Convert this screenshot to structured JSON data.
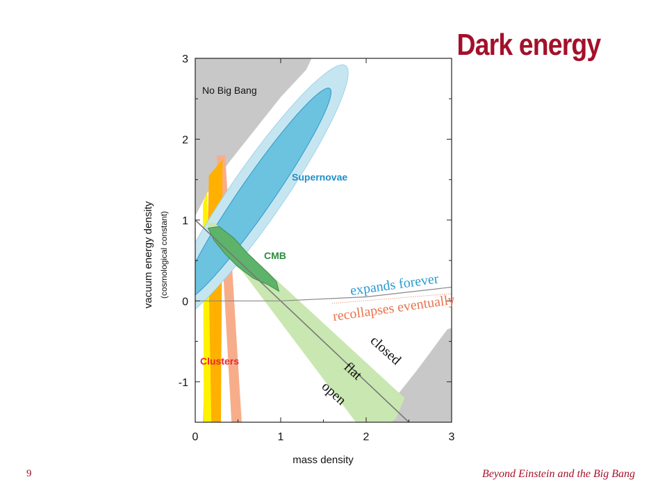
{
  "slide": {
    "title": "Dark energy",
    "page_number": "9",
    "footer": "Beyond Einstein and the Big Bang"
  },
  "chart_data": {
    "type": "contour",
    "xlabel": "mass density",
    "ylabel": "vacuum energy density",
    "ylabel_sub": "(cosmological constant)",
    "xlim": [
      0,
      3
    ],
    "ylim": [
      -1.5,
      3
    ],
    "x_ticks": [
      0,
      1,
      2,
      3
    ],
    "y_ticks": [
      -1,
      0,
      1,
      2,
      3
    ],
    "x_tick_labels": [
      "0",
      "1",
      "2",
      "3"
    ],
    "y_tick_labels": [
      "-1",
      "0",
      "1",
      "2",
      "3"
    ],
    "colors": {
      "no_big_bang": "#c8c8c8",
      "supernovae_outer": "#c5e6f1",
      "supernovae_inner": "#6cc3e0",
      "cmb_band": "#c9e7b0",
      "cmb_core": "#5db36a",
      "clusters_yellow": "#fff200",
      "clusters_orange": "#ffb000",
      "clusters_salmon": "#f7ad8a",
      "supernovae_label": "#1d8fc8",
      "cmb_label": "#2e8b3e",
      "clusters_label": "#e8262d",
      "expands_label": "#2a9ad0",
      "recollapses_label": "#e8734e"
    },
    "regions": [
      {
        "name": "No Big Bang",
        "description_label": "No Big Bang"
      },
      {
        "name": "Supernovae",
        "description_label": "Supernovae",
        "center": [
          0.72,
          1.32
        ]
      },
      {
        "name": "CMB",
        "description_label": "CMB",
        "center": [
          0.45,
          0.55
        ]
      },
      {
        "name": "Clusters",
        "description_label": "Clusters",
        "omega_m_range": [
          0.1,
          0.5
        ]
      }
    ],
    "lines": [
      {
        "name": "flat",
        "points": [
          [
            0,
            1
          ],
          [
            2.5,
            -1.5
          ]
        ]
      },
      {
        "name": "expands/recollapses boundary",
        "points": [
          [
            0,
            0
          ],
          [
            1,
            0
          ],
          [
            2,
            0.05
          ],
          [
            3,
            0.17
          ]
        ]
      }
    ],
    "annotations": [
      "expands forever",
      "recollapses eventually",
      "closed",
      "flat",
      "open"
    ]
  }
}
